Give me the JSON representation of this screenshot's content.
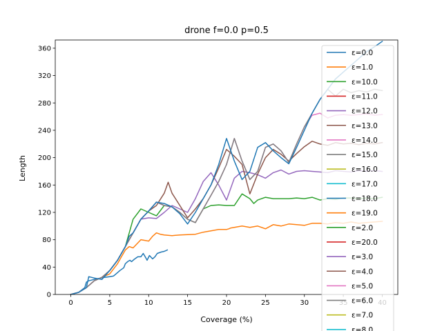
{
  "chart_data": {
    "type": "line",
    "title": "drone f=0.0 p=0.5",
    "xlabel": "Coverage (%)",
    "ylabel": "Length",
    "xlim": [
      -2,
      42
    ],
    "ylim": [
      0,
      372
    ],
    "xticks": [
      0,
      5,
      10,
      15,
      20,
      25,
      30,
      35,
      40
    ],
    "yticks": [
      0,
      40,
      80,
      120,
      160,
      200,
      240,
      280,
      320,
      360
    ],
    "grid": false,
    "legend_position": "right",
    "legend_order": [
      "ε=0.0",
      "ε=1.0",
      "ε=10.0",
      "ε=11.0",
      "ε=12.0",
      "ε=13.0",
      "ε=14.0",
      "ε=15.0",
      "ε=16.0",
      "ε=17.0",
      "ε=18.0",
      "ε=19.0",
      "ε=2.0",
      "ε=20.0",
      "ε=3.0",
      "ε=4.0",
      "ε=5.0",
      "ε=6.0",
      "ε=7.0",
      "ε=8.0"
    ],
    "series": [
      {
        "name": "ε=0.0",
        "color": "#1f77b4",
        "x": [
          0,
          1,
          1.8,
          2,
          2.3,
          3,
          3.8,
          4.3,
          5,
          5.5,
          6,
          6.3,
          6.8,
          7,
          7.3,
          7.6,
          7.8,
          8.1,
          8.6,
          9,
          9.3,
          9.6,
          9.8,
          10.1,
          10.5,
          10.8,
          11.1,
          11.6,
          12,
          12.4
        ],
        "y": [
          0,
          3,
          10,
          18,
          20,
          22,
          24,
          25,
          26,
          27,
          32,
          35,
          39,
          45,
          48,
          50,
          48,
          51,
          55,
          55,
          60,
          54,
          50,
          57,
          52,
          55,
          60,
          62,
          63,
          65
        ]
      },
      {
        "name": "ε=19.0",
        "color": "#ff7f0e",
        "x": [
          0,
          1,
          2,
          3,
          4,
          5,
          6,
          6.5,
          7,
          7.5,
          8,
          9,
          10,
          10.5,
          11,
          11.5,
          12,
          13,
          14,
          16,
          17,
          18,
          19,
          20,
          20.3,
          20.5,
          21,
          22,
          22.5,
          23,
          24,
          25,
          26,
          27,
          28,
          29,
          30,
          31,
          32,
          33,
          34,
          35,
          36,
          37,
          38,
          39,
          40
        ],
        "y": [
          0,
          3,
          10,
          20,
          25,
          30,
          45,
          55,
          65,
          70,
          68,
          80,
          78,
          85,
          90,
          88,
          87,
          86,
          87,
          88,
          91,
          93,
          95,
          95,
          96,
          97,
          98,
          100,
          99,
          98,
          100,
          96,
          102,
          100,
          103,
          102,
          101,
          104,
          104,
          103,
          105,
          104,
          106,
          104,
          105,
          106,
          107
        ]
      },
      {
        "name": "ε=2.0",
        "color": "#2ca02c",
        "x": [
          0,
          1,
          2,
          3,
          4,
          5,
          6,
          7,
          8,
          9,
          10,
          11,
          12,
          13,
          14,
          15,
          16,
          17,
          18,
          19,
          20,
          21,
          22,
          23,
          23.5,
          24,
          25,
          26,
          27,
          28,
          29,
          30,
          31,
          32,
          33,
          34,
          35,
          36,
          37,
          38,
          39,
          40
        ],
        "y": [
          0,
          3,
          10,
          20,
          25,
          35,
          50,
          70,
          110,
          125,
          120,
          115,
          130,
          128,
          120,
          110,
          105,
          125,
          130,
          131,
          130,
          130,
          147,
          140,
          133,
          138,
          142,
          140,
          140,
          140,
          141,
          140,
          142,
          138,
          140,
          139,
          141,
          141,
          140,
          141,
          140,
          142
        ]
      },
      {
        "name": "ε=3.0",
        "color": "#9467bd",
        "x": [
          0,
          1,
          2,
          3,
          4,
          5,
          6,
          7,
          8,
          9,
          10,
          11,
          12,
          13,
          14,
          15,
          16,
          17,
          18,
          19,
          20,
          21,
          22,
          23,
          24,
          25,
          26,
          27,
          28,
          29,
          30,
          31,
          32,
          33,
          34,
          35,
          36,
          37,
          38,
          39,
          40
        ],
        "y": [
          0,
          3,
          10,
          20,
          25,
          35,
          50,
          70,
          90,
          110,
          112,
          111,
          120,
          130,
          125,
          120,
          140,
          165,
          178,
          160,
          138,
          170,
          180,
          178,
          175,
          170,
          178,
          182,
          176,
          180,
          181,
          180,
          179,
          178,
          181,
          180,
          179,
          181,
          180,
          181,
          180
        ]
      },
      {
        "name": "ε=4.0",
        "color": "#8c564b",
        "x": [
          0,
          1,
          2,
          3,
          4,
          5,
          6,
          7,
          8,
          9,
          10,
          11,
          12,
          12.5,
          13,
          14,
          15,
          16,
          17,
          18,
          19,
          20,
          21,
          22,
          23,
          24,
          25,
          26,
          27,
          28,
          29,
          30,
          31,
          32,
          33,
          34,
          35,
          36,
          37,
          38,
          39,
          40
        ],
        "y": [
          0,
          3,
          10,
          20,
          25,
          35,
          50,
          70,
          90,
          110,
          122,
          130,
          148,
          164,
          148,
          130,
          112,
          125,
          140,
          160,
          185,
          212,
          202,
          190,
          147,
          176,
          200,
          212,
          205,
          195,
          206,
          216,
          224,
          220,
          218,
          222,
          220,
          221,
          219,
          221,
          220,
          222
        ]
      },
      {
        "name": "ε=5.0",
        "color": "#e377c2",
        "x": [
          0,
          1,
          2,
          3,
          4,
          5,
          6,
          7,
          8,
          9,
          10,
          11,
          12,
          13,
          14,
          15,
          16,
          17,
          18,
          19,
          20,
          21,
          22,
          23,
          24,
          25,
          26,
          27,
          28,
          29,
          30,
          31,
          32,
          33,
          34,
          35,
          36,
          37,
          38,
          39,
          40
        ],
        "y": [
          0,
          3,
          10,
          20,
          25,
          35,
          50,
          70,
          90,
          110,
          122,
          135,
          130,
          128,
          120,
          110,
          105,
          125,
          145,
          165,
          190,
          228,
          195,
          168,
          180,
          215,
          220,
          210,
          193,
          220,
          245,
          262,
          265,
          258,
          262,
          263,
          262,
          263,
          264,
          262,
          263
        ]
      },
      {
        "name": "ε=6.0",
        "color": "#7f7f7f",
        "x": [
          0,
          1,
          2,
          3,
          4,
          5,
          6,
          7,
          8,
          9,
          10,
          11,
          12,
          13,
          14,
          15,
          16,
          17,
          18,
          19,
          20,
          21,
          22,
          23,
          24,
          25,
          26,
          27,
          28,
          29,
          30,
          31,
          32,
          33,
          34,
          35,
          36,
          37,
          38,
          39,
          40
        ],
        "y": [
          0,
          3,
          10,
          20,
          25,
          35,
          50,
          70,
          90,
          110,
          122,
          135,
          130,
          128,
          120,
          110,
          105,
          125,
          145,
          165,
          190,
          228,
          195,
          168,
          180,
          215,
          220,
          210,
          193,
          220,
          245,
          265,
          285,
          300,
          290,
          300,
          295,
          298,
          296,
          300,
          298
        ]
      },
      {
        "name": "ε=18.0",
        "color": "#1f77b4",
        "x": [
          0,
          1,
          2,
          2.3,
          3,
          4,
          5,
          6,
          7,
          7.5,
          8,
          9,
          10,
          11,
          12,
          13,
          14,
          15,
          16,
          17,
          18,
          19,
          20,
          21,
          22,
          23,
          24,
          25,
          26,
          27,
          28,
          29,
          30,
          31,
          32,
          33,
          34,
          35,
          36,
          37,
          38,
          39,
          40
        ],
        "y": [
          0,
          3,
          10,
          26,
          24,
          22,
          35,
          50,
          70,
          85,
          90,
          110,
          122,
          135,
          133,
          128,
          118,
          103,
          120,
          140,
          160,
          190,
          228,
          195,
          168,
          180,
          215,
          222,
          210,
          200,
          191,
          215,
          240,
          265,
          285,
          300,
          315,
          325,
          335,
          345,
          355,
          362,
          370
        ]
      }
    ]
  }
}
